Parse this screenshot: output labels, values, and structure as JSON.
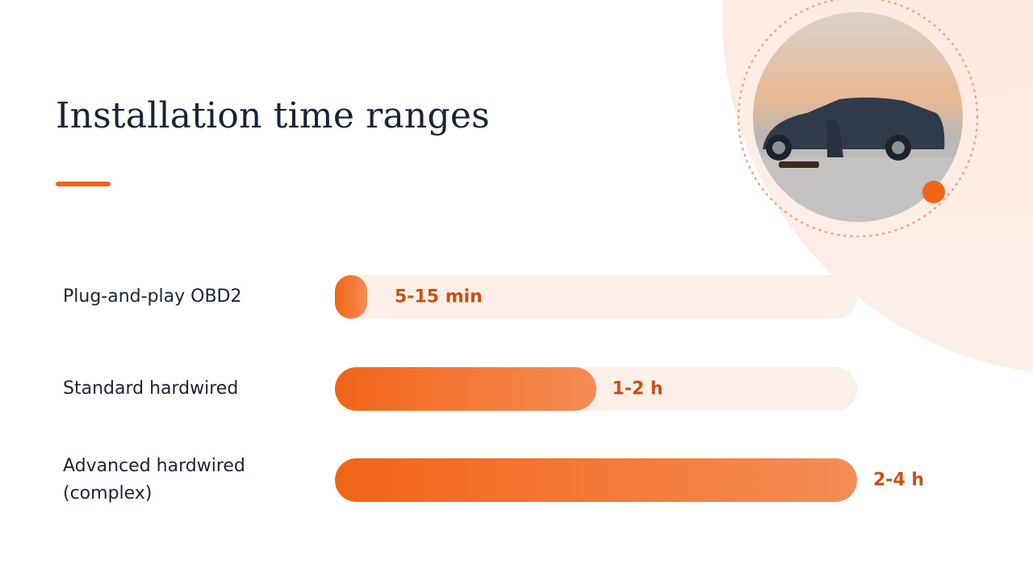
{
  "chart_data": {
    "type": "bar",
    "orientation": "horizontal",
    "title": "Installation time ranges",
    "categories": [
      "Plug-and-play OBD2",
      "Standard hardwired",
      "Advanced hardwired (complex)"
    ],
    "values": [
      0.25,
      2,
      4
    ],
    "value_labels": [
      "5-15 min",
      "1-2 h",
      "2-4 h"
    ],
    "xlim": [
      0,
      4
    ],
    "color": "#f06418"
  }
}
